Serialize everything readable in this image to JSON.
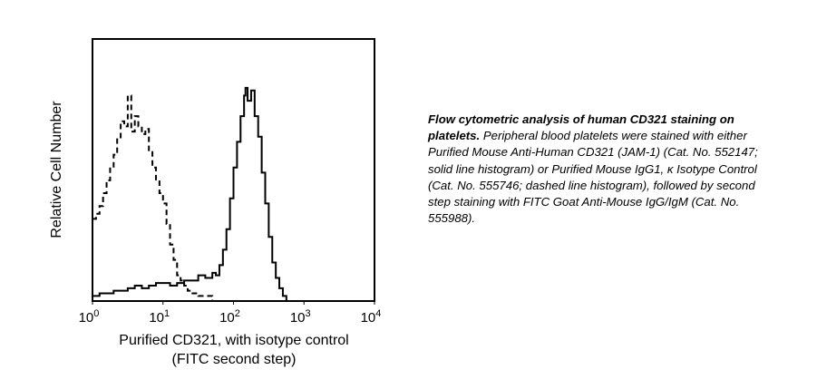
{
  "chart_data": {
    "type": "line",
    "title": "",
    "xlabel": "Purified CD321, with isotype control",
    "xlabel2": "(FITC second step)",
    "ylabel": "Relative Cell Number",
    "xscale": "log",
    "xlim": [
      1,
      10000
    ],
    "ylim": [
      0,
      100
    ],
    "x_ticks": [
      {
        "base": "10",
        "exp": "0"
      },
      {
        "base": "10",
        "exp": "1"
      },
      {
        "base": "10",
        "exp": "2"
      },
      {
        "base": "10",
        "exp": "3"
      },
      {
        "base": "10",
        "exp": "4"
      }
    ],
    "grid": false,
    "series": [
      {
        "name": "Purified Mouse Anti-Human CD321 (solid)",
        "style": "solid",
        "log10_x": [
          0,
          0.1,
          0.2,
          0.3,
          0.4,
          0.5,
          0.6,
          0.7,
          0.8,
          0.9,
          1.0,
          1.1,
          1.2,
          1.3,
          1.4,
          1.5,
          1.6,
          1.7,
          1.75,
          1.8,
          1.85,
          1.9,
          1.95,
          2.0,
          2.05,
          2.1,
          2.15,
          2.17,
          2.2,
          2.25,
          2.3,
          2.35,
          2.4,
          2.45,
          2.5,
          2.55,
          2.6,
          2.65,
          2.7,
          2.75,
          2.8
        ],
        "values": [
          2,
          3,
          3,
          4,
          4,
          5,
          6,
          5,
          6,
          7,
          7,
          6,
          7,
          8,
          8,
          10,
          9,
          11,
          10,
          14,
          20,
          28,
          40,
          52,
          62,
          72,
          80,
          83,
          78,
          82,
          72,
          64,
          50,
          38,
          25,
          15,
          9,
          5,
          2,
          0,
          0
        ]
      },
      {
        "name": "Purified Mouse IgG1, κ Isotype Control (dashed)",
        "style": "dashed",
        "log10_x": [
          0,
          0.05,
          0.1,
          0.15,
          0.2,
          0.25,
          0.3,
          0.35,
          0.4,
          0.45,
          0.5,
          0.55,
          0.6,
          0.65,
          0.7,
          0.75,
          0.8,
          0.85,
          0.9,
          0.95,
          1.0,
          1.05,
          1.1,
          1.15,
          1.2,
          1.25,
          1.3,
          1.35,
          1.4,
          1.5,
          1.6,
          1.7,
          1.8
        ],
        "values": [
          32,
          34,
          37,
          42,
          47,
          52,
          57,
          63,
          70,
          68,
          80,
          66,
          72,
          68,
          65,
          67,
          58,
          52,
          47,
          42,
          38,
          30,
          22,
          16,
          10,
          8,
          6,
          4,
          3,
          2,
          2,
          0,
          0
        ]
      }
    ]
  },
  "caption": {
    "bold": "Flow cytometric analysis of human CD321 staining on platelets.",
    "text": " Peripheral blood platelets were stained with either Purified Mouse Anti-Human CD321 (JAM-1) (Cat. No. 552147; solid line histogram) or Purified Mouse IgG1, κ Isotype Control (Cat. No.  555746; dashed line histogram), followed by second step staining with FITC Goat Anti-Mouse IgG/IgM (Cat. No. 555988)."
  }
}
